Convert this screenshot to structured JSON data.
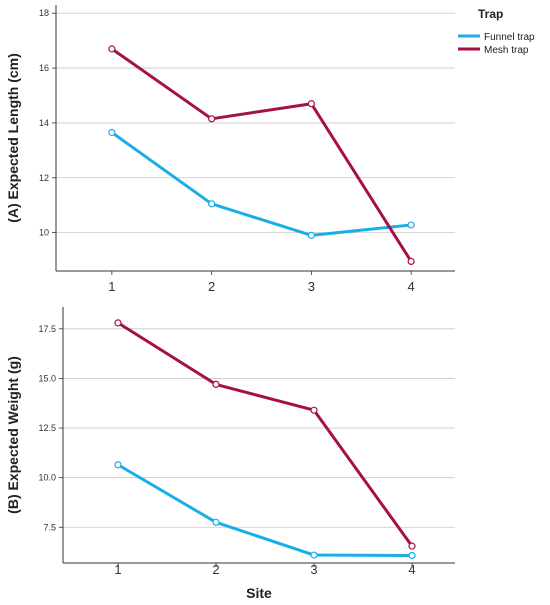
{
  "chart_data": [
    {
      "type": "line",
      "panel": "top",
      "ylabel": "(A) Expected Length (cm)",
      "xlabel": "",
      "categories": [
        "1",
        "2",
        "3",
        "4"
      ],
      "ylim": [
        8.6,
        18.3
      ],
      "yticks": [
        10,
        12,
        14,
        16,
        18
      ],
      "series": [
        {
          "name": "Funnel trap",
          "color": "#1aaee8",
          "values": [
            13.65,
            11.05,
            9.9,
            10.28
          ]
        },
        {
          "name": "Mesh trap",
          "color": "#a6104a",
          "values": [
            16.7,
            14.15,
            14.7,
            8.95
          ]
        }
      ]
    },
    {
      "type": "line",
      "panel": "bottom",
      "ylabel": "(B) Expected Weight (g)",
      "xlabel": "Site",
      "categories": [
        "1",
        "2",
        "3",
        "4"
      ],
      "ylim": [
        5.7,
        18.6
      ],
      "yticks": [
        7.5,
        10.0,
        12.5,
        15.0,
        17.5
      ],
      "ytick_labels": [
        "7.5",
        "10.0",
        "12.5",
        "15.0",
        "17.5"
      ],
      "series": [
        {
          "name": "Funnel trap",
          "color": "#1aaee8",
          "values": [
            10.65,
            7.75,
            6.1,
            6.08
          ]
        },
        {
          "name": "Mesh trap",
          "color": "#a6104a",
          "values": [
            17.8,
            14.7,
            13.4,
            6.55
          ]
        }
      ]
    }
  ],
  "legend": {
    "title": "Trap",
    "position": "top-right",
    "items": [
      {
        "label": "Funnel trap",
        "color": "#1aaee8"
      },
      {
        "label": "Mesh trap",
        "color": "#a6104a"
      }
    ]
  },
  "grid": "horizontal"
}
